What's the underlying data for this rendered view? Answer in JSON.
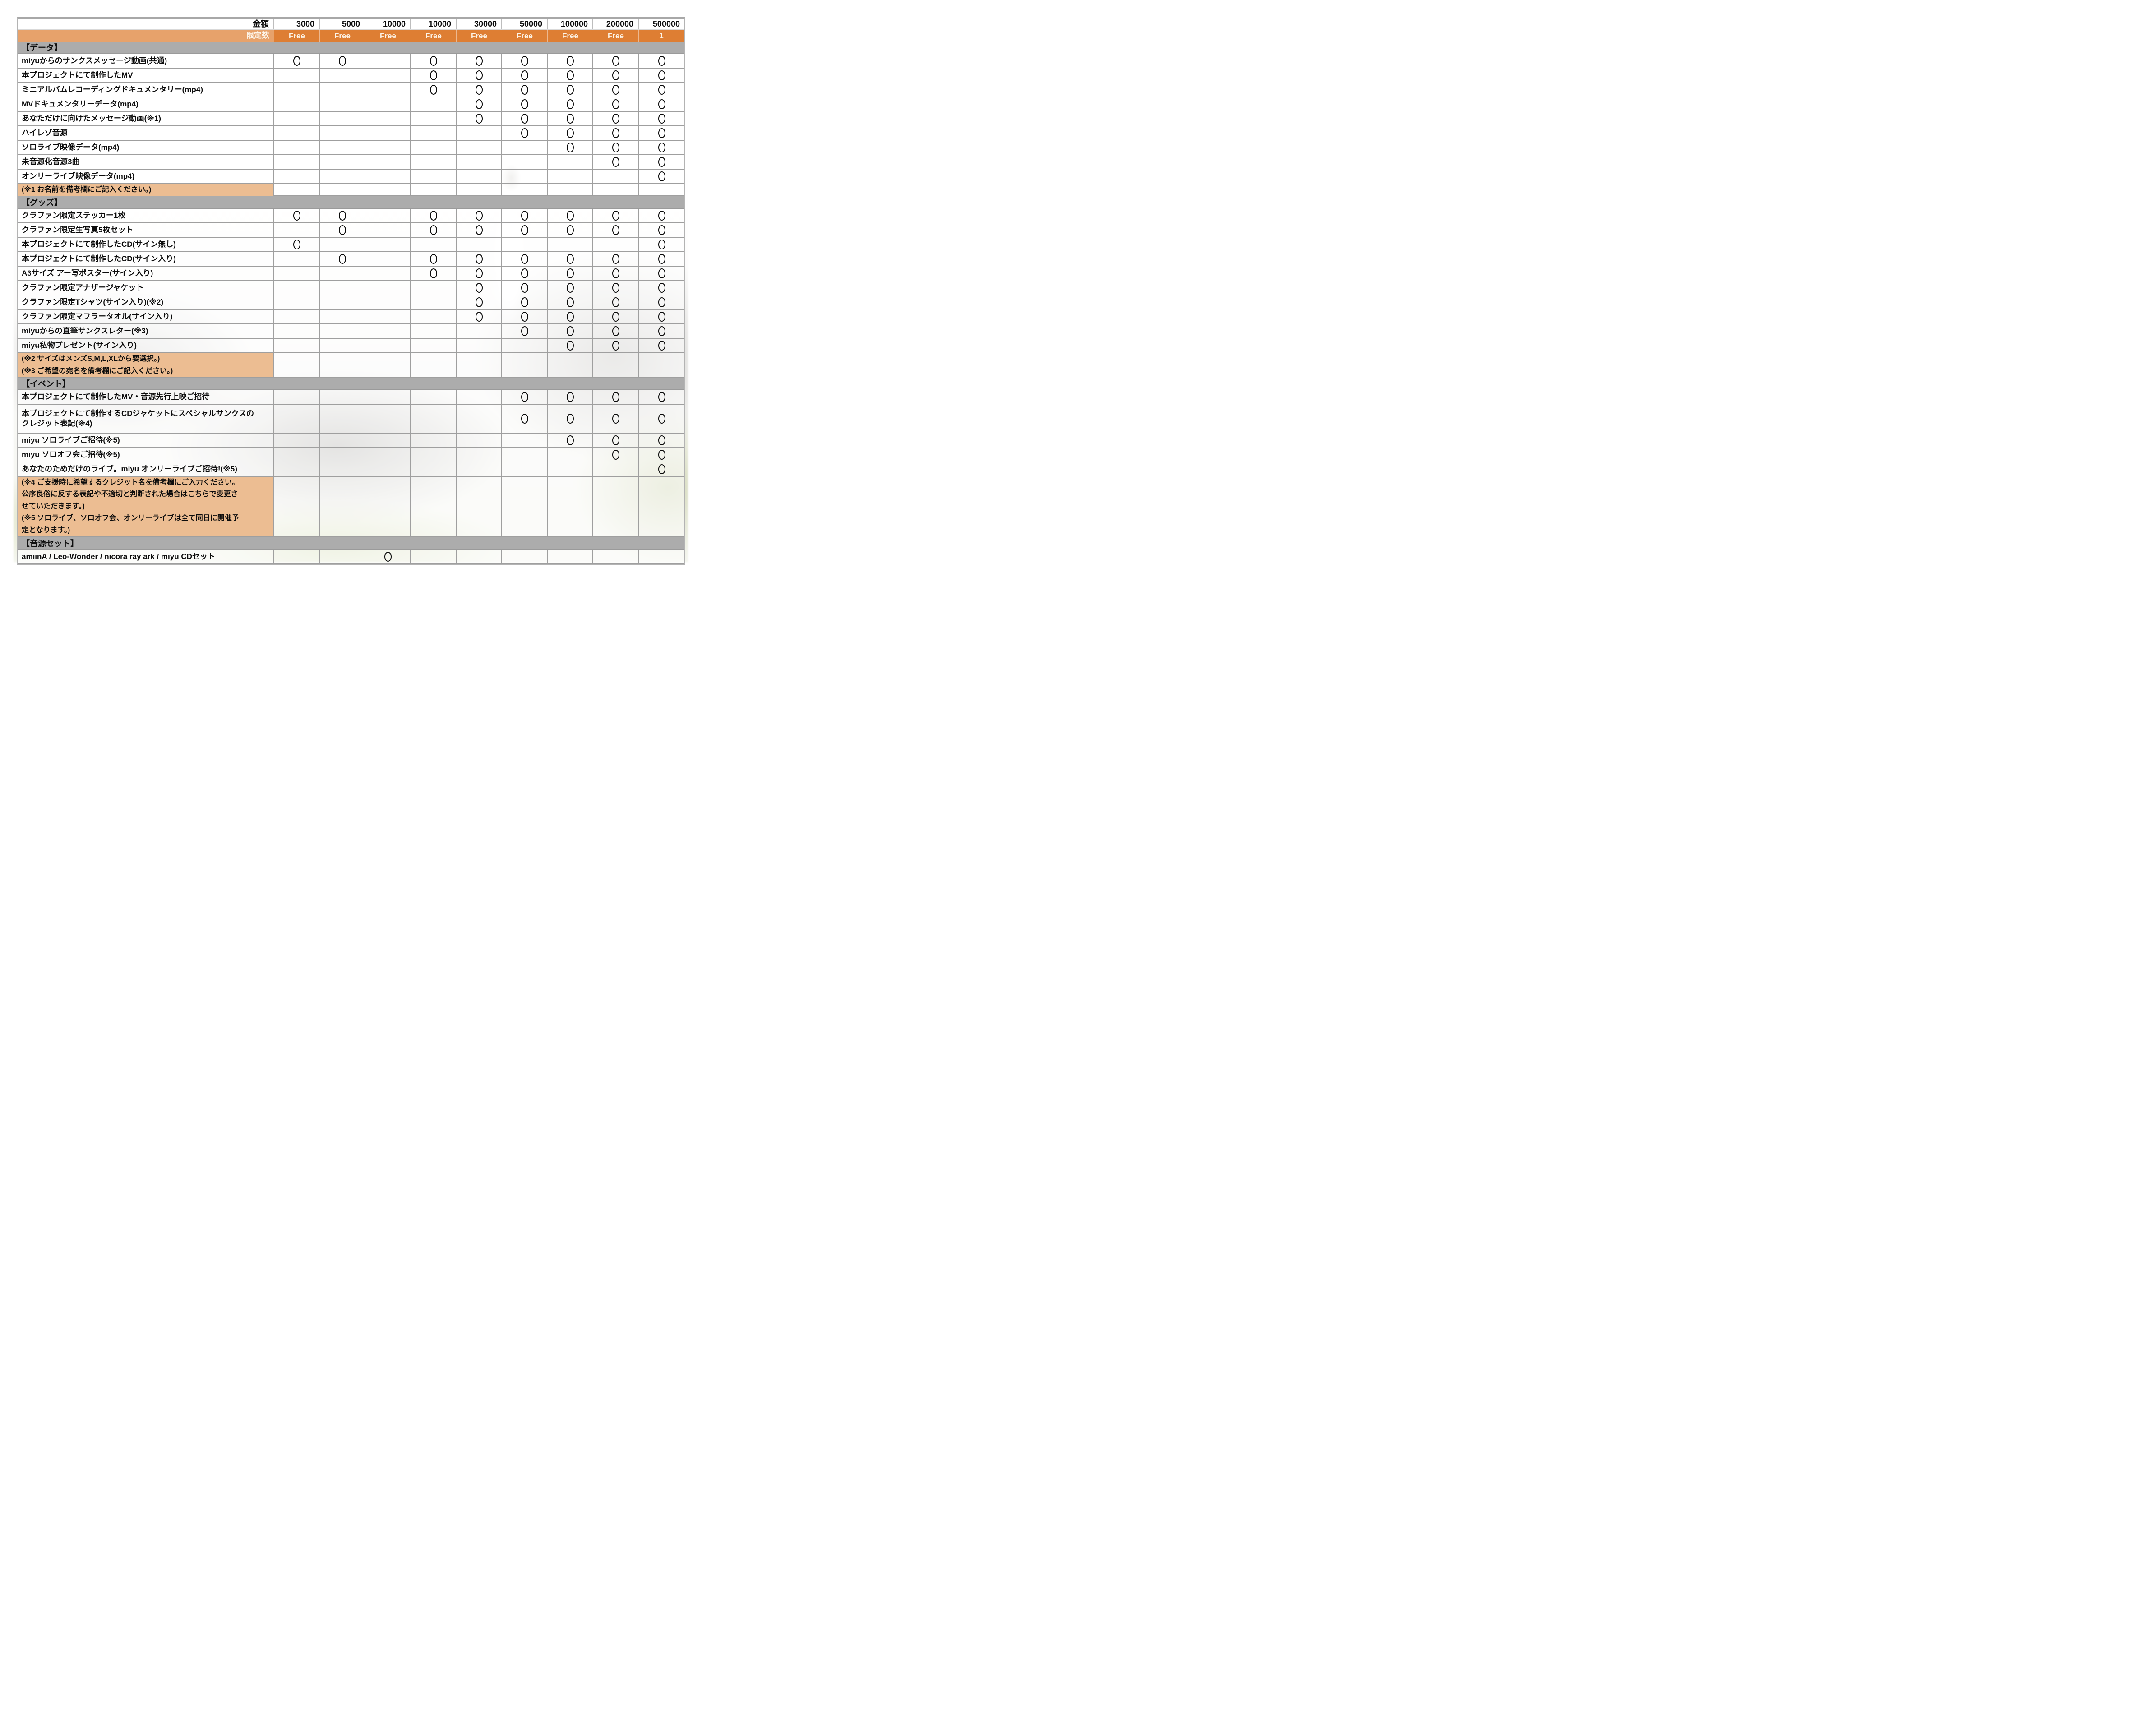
{
  "header": {
    "amount_label": "金額",
    "limit_label": "限定数",
    "tiers": [
      {
        "amount": "3000",
        "limit": "Free"
      },
      {
        "amount": "5000",
        "limit": "Free"
      },
      {
        "amount": "10000",
        "limit": "Free"
      },
      {
        "amount": "10000",
        "limit": "Free"
      },
      {
        "amount": "30000",
        "limit": "Free"
      },
      {
        "amount": "50000",
        "limit": "Free"
      },
      {
        "amount": "100000",
        "limit": "Free"
      },
      {
        "amount": "200000",
        "limit": "Free"
      },
      {
        "amount": "500000",
        "limit": "1"
      }
    ]
  },
  "mark_symbol": "○",
  "colors": {
    "accent_orange": "#DE7E33",
    "note_tan": "#ECBD92",
    "section_gray": "#ACACAC",
    "grid": "#9F9F9F"
  },
  "sections": [
    {
      "title": "【データ】",
      "rows": [
        {
          "label": "miyuからのサンクスメッセージ動画(共通)",
          "marks": [
            1,
            1,
            0,
            1,
            1,
            1,
            1,
            1,
            1
          ]
        },
        {
          "label": "本プロジェクトにて制作したMV",
          "marks": [
            0,
            0,
            0,
            1,
            1,
            1,
            1,
            1,
            1
          ]
        },
        {
          "label": "ミニアルバムレコーディングドキュメンタリー(mp4)",
          "marks": [
            0,
            0,
            0,
            1,
            1,
            1,
            1,
            1,
            1
          ]
        },
        {
          "label": "MVドキュメンタリーデータ(mp4)",
          "marks": [
            0,
            0,
            0,
            0,
            1,
            1,
            1,
            1,
            1
          ]
        },
        {
          "label": "あなただけに向けたメッセージ動画(※1)",
          "marks": [
            0,
            0,
            0,
            0,
            1,
            1,
            1,
            1,
            1
          ]
        },
        {
          "label": "ハイレゾ音源",
          "marks": [
            0,
            0,
            0,
            0,
            0,
            1,
            1,
            1,
            1
          ]
        },
        {
          "label": "ソロライブ映像データ(mp4)",
          "marks": [
            0,
            0,
            0,
            0,
            0,
            0,
            1,
            1,
            1
          ]
        },
        {
          "label": "未音源化音源3曲",
          "marks": [
            0,
            0,
            0,
            0,
            0,
            0,
            0,
            1,
            1
          ]
        },
        {
          "label": "オンリーライブ映像データ(mp4)",
          "marks": [
            0,
            0,
            0,
            0,
            0,
            0,
            0,
            0,
            1
          ]
        }
      ],
      "notes": [
        {
          "lines": [
            "(※1 お名前を備考欄にご記入ください。)"
          ]
        }
      ]
    },
    {
      "title": "【グッズ】",
      "rows": [
        {
          "label": "クラファン限定ステッカー1枚",
          "marks": [
            1,
            1,
            0,
            1,
            1,
            1,
            1,
            1,
            1
          ]
        },
        {
          "label": "クラファン限定生写真5枚セット",
          "marks": [
            0,
            1,
            0,
            1,
            1,
            1,
            1,
            1,
            1
          ]
        },
        {
          "label": "本プロジェクトにて制作したCD(サイン無し)",
          "marks": [
            1,
            0,
            0,
            0,
            0,
            0,
            0,
            0,
            1
          ]
        },
        {
          "label": "本プロジェクトにて制作したCD(サイン入り)",
          "marks": [
            0,
            1,
            0,
            1,
            1,
            1,
            1,
            1,
            1
          ]
        },
        {
          "label": "A3サイズ アー写ポスター(サイン入り)",
          "marks": [
            0,
            0,
            0,
            1,
            1,
            1,
            1,
            1,
            1
          ]
        },
        {
          "label": "クラファン限定アナザージャケット",
          "marks": [
            0,
            0,
            0,
            0,
            1,
            1,
            1,
            1,
            1
          ]
        },
        {
          "label": "クラファン限定Tシャツ(サイン入り)(※2)",
          "marks": [
            0,
            0,
            0,
            0,
            1,
            1,
            1,
            1,
            1
          ]
        },
        {
          "label": "クラファン限定マフラータオル(サイン入り)",
          "marks": [
            0,
            0,
            0,
            0,
            1,
            1,
            1,
            1,
            1
          ]
        },
        {
          "label": "miyuからの直筆サンクスレター(※3)",
          "marks": [
            0,
            0,
            0,
            0,
            0,
            1,
            1,
            1,
            1
          ]
        },
        {
          "label": "miyu私物プレゼント(サイン入り)",
          "marks": [
            0,
            0,
            0,
            0,
            0,
            0,
            1,
            1,
            1
          ]
        }
      ],
      "notes": [
        {
          "lines": [
            "(※2 サイズはメンズS,M,L,XLから要選択。)"
          ]
        },
        {
          "lines": [
            "(※3 ご希望の宛名を備考欄にご記入ください。)"
          ]
        }
      ]
    },
    {
      "title": "【イベント】",
      "rows": [
        {
          "label": "本プロジェクトにて制作したMV・音源先行上映ご招待",
          "marks": [
            0,
            0,
            0,
            0,
            0,
            1,
            1,
            1,
            1
          ]
        },
        {
          "label": "本プロジェクトにて制作するCDジャケットにスペシャルサンクスの\nクレジット表記(※4)",
          "marks": [
            0,
            0,
            0,
            0,
            0,
            1,
            1,
            1,
            1
          ],
          "tall": true
        },
        {
          "label": "miyu ソロライブご招待(※5)",
          "marks": [
            0,
            0,
            0,
            0,
            0,
            0,
            1,
            1,
            1
          ]
        },
        {
          "label": "miyu ソロオフ会ご招待(※5)",
          "marks": [
            0,
            0,
            0,
            0,
            0,
            0,
            0,
            1,
            1
          ]
        },
        {
          "label": "あなたのためだけのライブ。miyu オンリーライブご招待!(※5)",
          "marks": [
            0,
            0,
            0,
            0,
            0,
            0,
            0,
            0,
            1
          ]
        }
      ],
      "notes": [
        {
          "lines": [
            "(※4 ご支援時に希望するクレジット名を備考欄にご入力ください。",
            "公序良俗に反する表記や不適切と判断された場合はこちらで変更さ",
            "せていただきます。)",
            "(※5 ソロライブ、ソロオフ会、オンリーライブは全て同日に開催予",
            "定となります。)"
          ]
        }
      ]
    },
    {
      "title": "【音源セット】",
      "rows": [
        {
          "label": "amiinA / Leo-Wonder / nicora ray ark / miyu CDセット",
          "marks": [
            0,
            0,
            1,
            0,
            0,
            0,
            0,
            0,
            0
          ]
        }
      ],
      "notes": []
    }
  ]
}
